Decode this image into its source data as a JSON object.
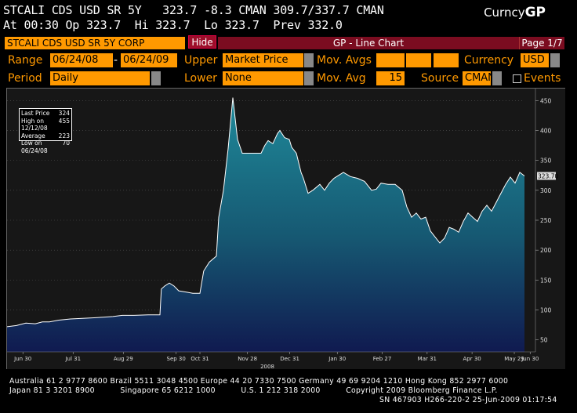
{
  "header": {
    "line1": "STCALI CDS USD SR 5Y   323.7 -8.3 CMAN 309.7/337.7 CMAN",
    "line2": "At 00:30 Op 323.7  Hi 323.7  Lo 323.7  Prev 332.0",
    "curncy_prefix": "Curncy",
    "curncy_func": "GP"
  },
  "toolbar": {
    "security": "STCALI CDS USD SR 5Y CORP",
    "hide_label": "Hide",
    "title": "GP - Line Chart",
    "page": "Page 1/7"
  },
  "controls": {
    "range_label": "Range",
    "range_start": "06/24/08",
    "range_sep": "-",
    "range_end": "06/24/09",
    "upper_label": "Upper",
    "upper_value": "Market Price",
    "mov_avgs_label": "Mov. Avgs",
    "currency_label": "Currency",
    "currency_value": "USD",
    "period_label": "Period",
    "period_value": "Daily",
    "lower_label": "Lower",
    "lower_value": "None",
    "mov_avg_label": "Mov. Avg",
    "mov_avg_value": "15",
    "source_label": "Source",
    "source_value": "CMAN",
    "events_label": "Events"
  },
  "legend": {
    "rows": [
      {
        "label": "Last Price",
        "value": "324"
      },
      {
        "label": "High on 12/12/08",
        "value": "455"
      },
      {
        "label": "Average",
        "value": "223"
      },
      {
        "label": "Low on 06/24/08",
        "value": "70"
      }
    ]
  },
  "footer": {
    "line1": "Australia 61 2 9777 8600 Brazil 5511 3048 4500 Europe 44 20 7330 7500 Germany 49 69 9204 1210 Hong Kong 852 2977 6000",
    "line2": "Japan 81 3 3201 8900          Singapore 65 6212 1000          U.S. 1 212 318 2000          Copyright 2009 Bloomberg Finance L.P.",
    "line3": "SN 467903 H266-220-2 25-Jun-2009 01:17:54"
  },
  "colors": {
    "orange": "#ff9900",
    "area_top": "#1f8a9a",
    "area_bottom": "#101a50"
  },
  "chart_data": {
    "type": "area",
    "title": "",
    "xlabel": "",
    "ylabel": "",
    "ylim": [
      30,
      470
    ],
    "yticks": [
      50,
      100,
      150,
      200,
      250,
      300,
      350,
      400,
      450
    ],
    "last_value_label": "323.70",
    "x_tick_labels": [
      "Jun 30",
      "Jul 31",
      "Aug 29",
      "Sep 30",
      "Oct 31",
      "Nov 28",
      "Dec 31",
      "Jan 30",
      "Feb 27",
      "Mar 31",
      "Apr 30",
      "May 29",
      "Jun 30"
    ],
    "year_label": "2008",
    "x_ticks_pos": [
      0.03,
      0.125,
      0.22,
      0.32,
      0.365,
      0.455,
      0.535,
      0.625,
      0.71,
      0.795,
      0.88,
      0.96,
      0.99
    ],
    "series": [
      {
        "points": [
          [
            0.0,
            72
          ],
          [
            0.02,
            74
          ],
          [
            0.04,
            78
          ],
          [
            0.06,
            77
          ],
          [
            0.075,
            80
          ],
          [
            0.09,
            80
          ],
          [
            0.11,
            83
          ],
          [
            0.135,
            85
          ],
          [
            0.16,
            86
          ],
          [
            0.185,
            87
          ],
          [
            0.205,
            88
          ],
          [
            0.225,
            89
          ],
          [
            0.245,
            91
          ],
          [
            0.27,
            91
          ],
          [
            0.3,
            92
          ],
          [
            0.325,
            92
          ],
          [
            0.328,
            135
          ],
          [
            0.335,
            140
          ],
          [
            0.345,
            145
          ],
          [
            0.355,
            140
          ],
          [
            0.365,
            132
          ],
          [
            0.38,
            130
          ],
          [
            0.395,
            128
          ],
          [
            0.41,
            128
          ],
          [
            0.418,
            165
          ],
          [
            0.43,
            180
          ],
          [
            0.445,
            190
          ],
          [
            0.45,
            255
          ],
          [
            0.46,
            300
          ],
          [
            0.47,
            370
          ],
          [
            0.48,
            455
          ],
          [
            0.49,
            385
          ],
          [
            0.5,
            362
          ],
          [
            0.52,
            362
          ],
          [
            0.54,
            362
          ],
          [
            0.548,
            375
          ],
          [
            0.555,
            383
          ],
          [
            0.565,
            378
          ],
          [
            0.575,
            395
          ],
          [
            0.58,
            400
          ],
          [
            0.59,
            388
          ],
          [
            0.6,
            385
          ],
          [
            0.605,
            372
          ],
          [
            0.615,
            362
          ],
          [
            0.625,
            330
          ],
          [
            0.63,
            320
          ],
          [
            0.64,
            295
          ],
          [
            0.65,
            300
          ],
          [
            0.665,
            310
          ],
          [
            0.675,
            300
          ],
          [
            0.685,
            312
          ],
          [
            0.695,
            320
          ],
          [
            0.705,
            325
          ],
          [
            0.715,
            330
          ],
          [
            0.73,
            323
          ],
          [
            0.745,
            320
          ],
          [
            0.76,
            315
          ],
          [
            0.775,
            300
          ],
          [
            0.785,
            302
          ],
          [
            0.795,
            312
          ],
          [
            0.81,
            310
          ],
          [
            0.825,
            310
          ],
          [
            0.84,
            300
          ],
          [
            0.85,
            272
          ],
          [
            0.86,
            255
          ],
          [
            0.87,
            262
          ],
          [
            0.88,
            252
          ],
          [
            0.89,
            255
          ],
          [
            0.9,
            232
          ],
          [
            0.91,
            222
          ],
          [
            0.92,
            212
          ],
          [
            0.93,
            220
          ],
          [
            0.94,
            238
          ],
          [
            0.95,
            235
          ],
          [
            0.96,
            230
          ],
          [
            0.97,
            248
          ],
          [
            0.98,
            262
          ],
          [
            0.99,
            255
          ],
          [
            1.0,
            248
          ],
          [
            1.01,
            265
          ],
          [
            1.02,
            275
          ],
          [
            1.03,
            265
          ],
          [
            1.04,
            280
          ],
          [
            1.05,
            295
          ],
          [
            1.06,
            310
          ],
          [
            1.07,
            322
          ],
          [
            1.08,
            312
          ],
          [
            1.09,
            330
          ],
          [
            1.1,
            324
          ]
        ]
      }
    ]
  }
}
